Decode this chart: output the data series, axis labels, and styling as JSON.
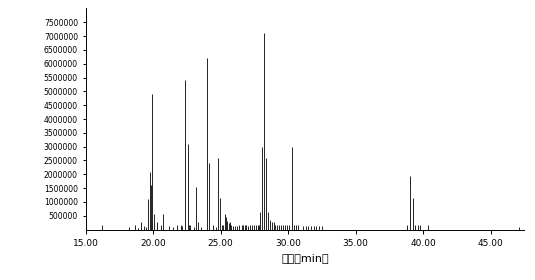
{
  "xlabel": "时间（min）",
  "xlim": [
    15.0,
    47.5
  ],
  "ylim": [
    0,
    8000000
  ],
  "yticks": [
    500000,
    1000000,
    1500000,
    2000000,
    2500000,
    3000000,
    3500000,
    4000000,
    4500000,
    5000000,
    5500000,
    6000000,
    6500000,
    7000000,
    7500000
  ],
  "xticks": [
    15.0,
    20.0,
    25.0,
    30.0,
    35.0,
    40.0,
    45.0
  ],
  "xtick_labels": [
    "15.00",
    "20.00",
    "25.00",
    "30.00",
    "35.00",
    "40.00",
    "45.00"
  ],
  "background_color": "#ffffff",
  "line_color": "#000000",
  "peaks": [
    [
      16.2,
      150000
    ],
    [
      18.2,
      100000
    ],
    [
      18.65,
      180000
    ],
    [
      18.9,
      70000
    ],
    [
      19.1,
      280000
    ],
    [
      19.35,
      120000
    ],
    [
      19.5,
      90000
    ],
    [
      19.62,
      1100000
    ],
    [
      19.75,
      2100000
    ],
    [
      19.85,
      1600000
    ],
    [
      19.95,
      4900000
    ],
    [
      20.1,
      550000
    ],
    [
      20.3,
      280000
    ],
    [
      20.55,
      180000
    ],
    [
      20.7,
      550000
    ],
    [
      21.2,
      130000
    ],
    [
      21.5,
      90000
    ],
    [
      21.8,
      170000
    ],
    [
      22.05,
      170000
    ],
    [
      22.15,
      130000
    ],
    [
      22.4,
      5400000
    ],
    [
      22.55,
      3100000
    ],
    [
      22.65,
      180000
    ],
    [
      22.75,
      170000
    ],
    [
      23.05,
      90000
    ],
    [
      23.2,
      1550000
    ],
    [
      23.35,
      270000
    ],
    [
      23.55,
      90000
    ],
    [
      24.0,
      6200000
    ],
    [
      24.15,
      2400000
    ],
    [
      24.45,
      180000
    ],
    [
      24.65,
      90000
    ],
    [
      24.8,
      2600000
    ],
    [
      24.95,
      1150000
    ],
    [
      25.1,
      170000
    ],
    [
      25.2,
      170000
    ],
    [
      25.3,
      550000
    ],
    [
      25.4,
      450000
    ],
    [
      25.5,
      300000
    ],
    [
      25.6,
      230000
    ],
    [
      25.7,
      270000
    ],
    [
      25.8,
      180000
    ],
    [
      25.95,
      130000
    ],
    [
      26.1,
      130000
    ],
    [
      26.25,
      130000
    ],
    [
      26.4,
      170000
    ],
    [
      26.55,
      170000
    ],
    [
      26.65,
      170000
    ],
    [
      26.8,
      170000
    ],
    [
      26.9,
      170000
    ],
    [
      27.0,
      130000
    ],
    [
      27.15,
      170000
    ],
    [
      27.3,
      170000
    ],
    [
      27.45,
      170000
    ],
    [
      27.6,
      170000
    ],
    [
      27.75,
      170000
    ],
    [
      27.85,
      170000
    ],
    [
      27.95,
      650000
    ],
    [
      28.1,
      3000000
    ],
    [
      28.2,
      7100000
    ],
    [
      28.35,
      2600000
    ],
    [
      28.5,
      650000
    ],
    [
      28.65,
      350000
    ],
    [
      28.8,
      270000
    ],
    [
      28.95,
      270000
    ],
    [
      29.05,
      170000
    ],
    [
      29.2,
      170000
    ],
    [
      29.35,
      170000
    ],
    [
      29.5,
      170000
    ],
    [
      29.65,
      170000
    ],
    [
      29.8,
      170000
    ],
    [
      29.95,
      170000
    ],
    [
      30.1,
      170000
    ],
    [
      30.3,
      3000000
    ],
    [
      30.45,
      170000
    ],
    [
      30.6,
      170000
    ],
    [
      30.75,
      170000
    ],
    [
      31.1,
      130000
    ],
    [
      31.3,
      130000
    ],
    [
      31.5,
      130000
    ],
    [
      31.7,
      130000
    ],
    [
      31.9,
      130000
    ],
    [
      32.1,
      130000
    ],
    [
      32.3,
      130000
    ],
    [
      32.5,
      130000
    ],
    [
      38.8,
      170000
    ],
    [
      39.05,
      1950000
    ],
    [
      39.25,
      1150000
    ],
    [
      39.4,
      170000
    ],
    [
      39.6,
      170000
    ],
    [
      39.75,
      170000
    ],
    [
      40.35,
      170000
    ],
    [
      47.1,
      90000
    ]
  ]
}
